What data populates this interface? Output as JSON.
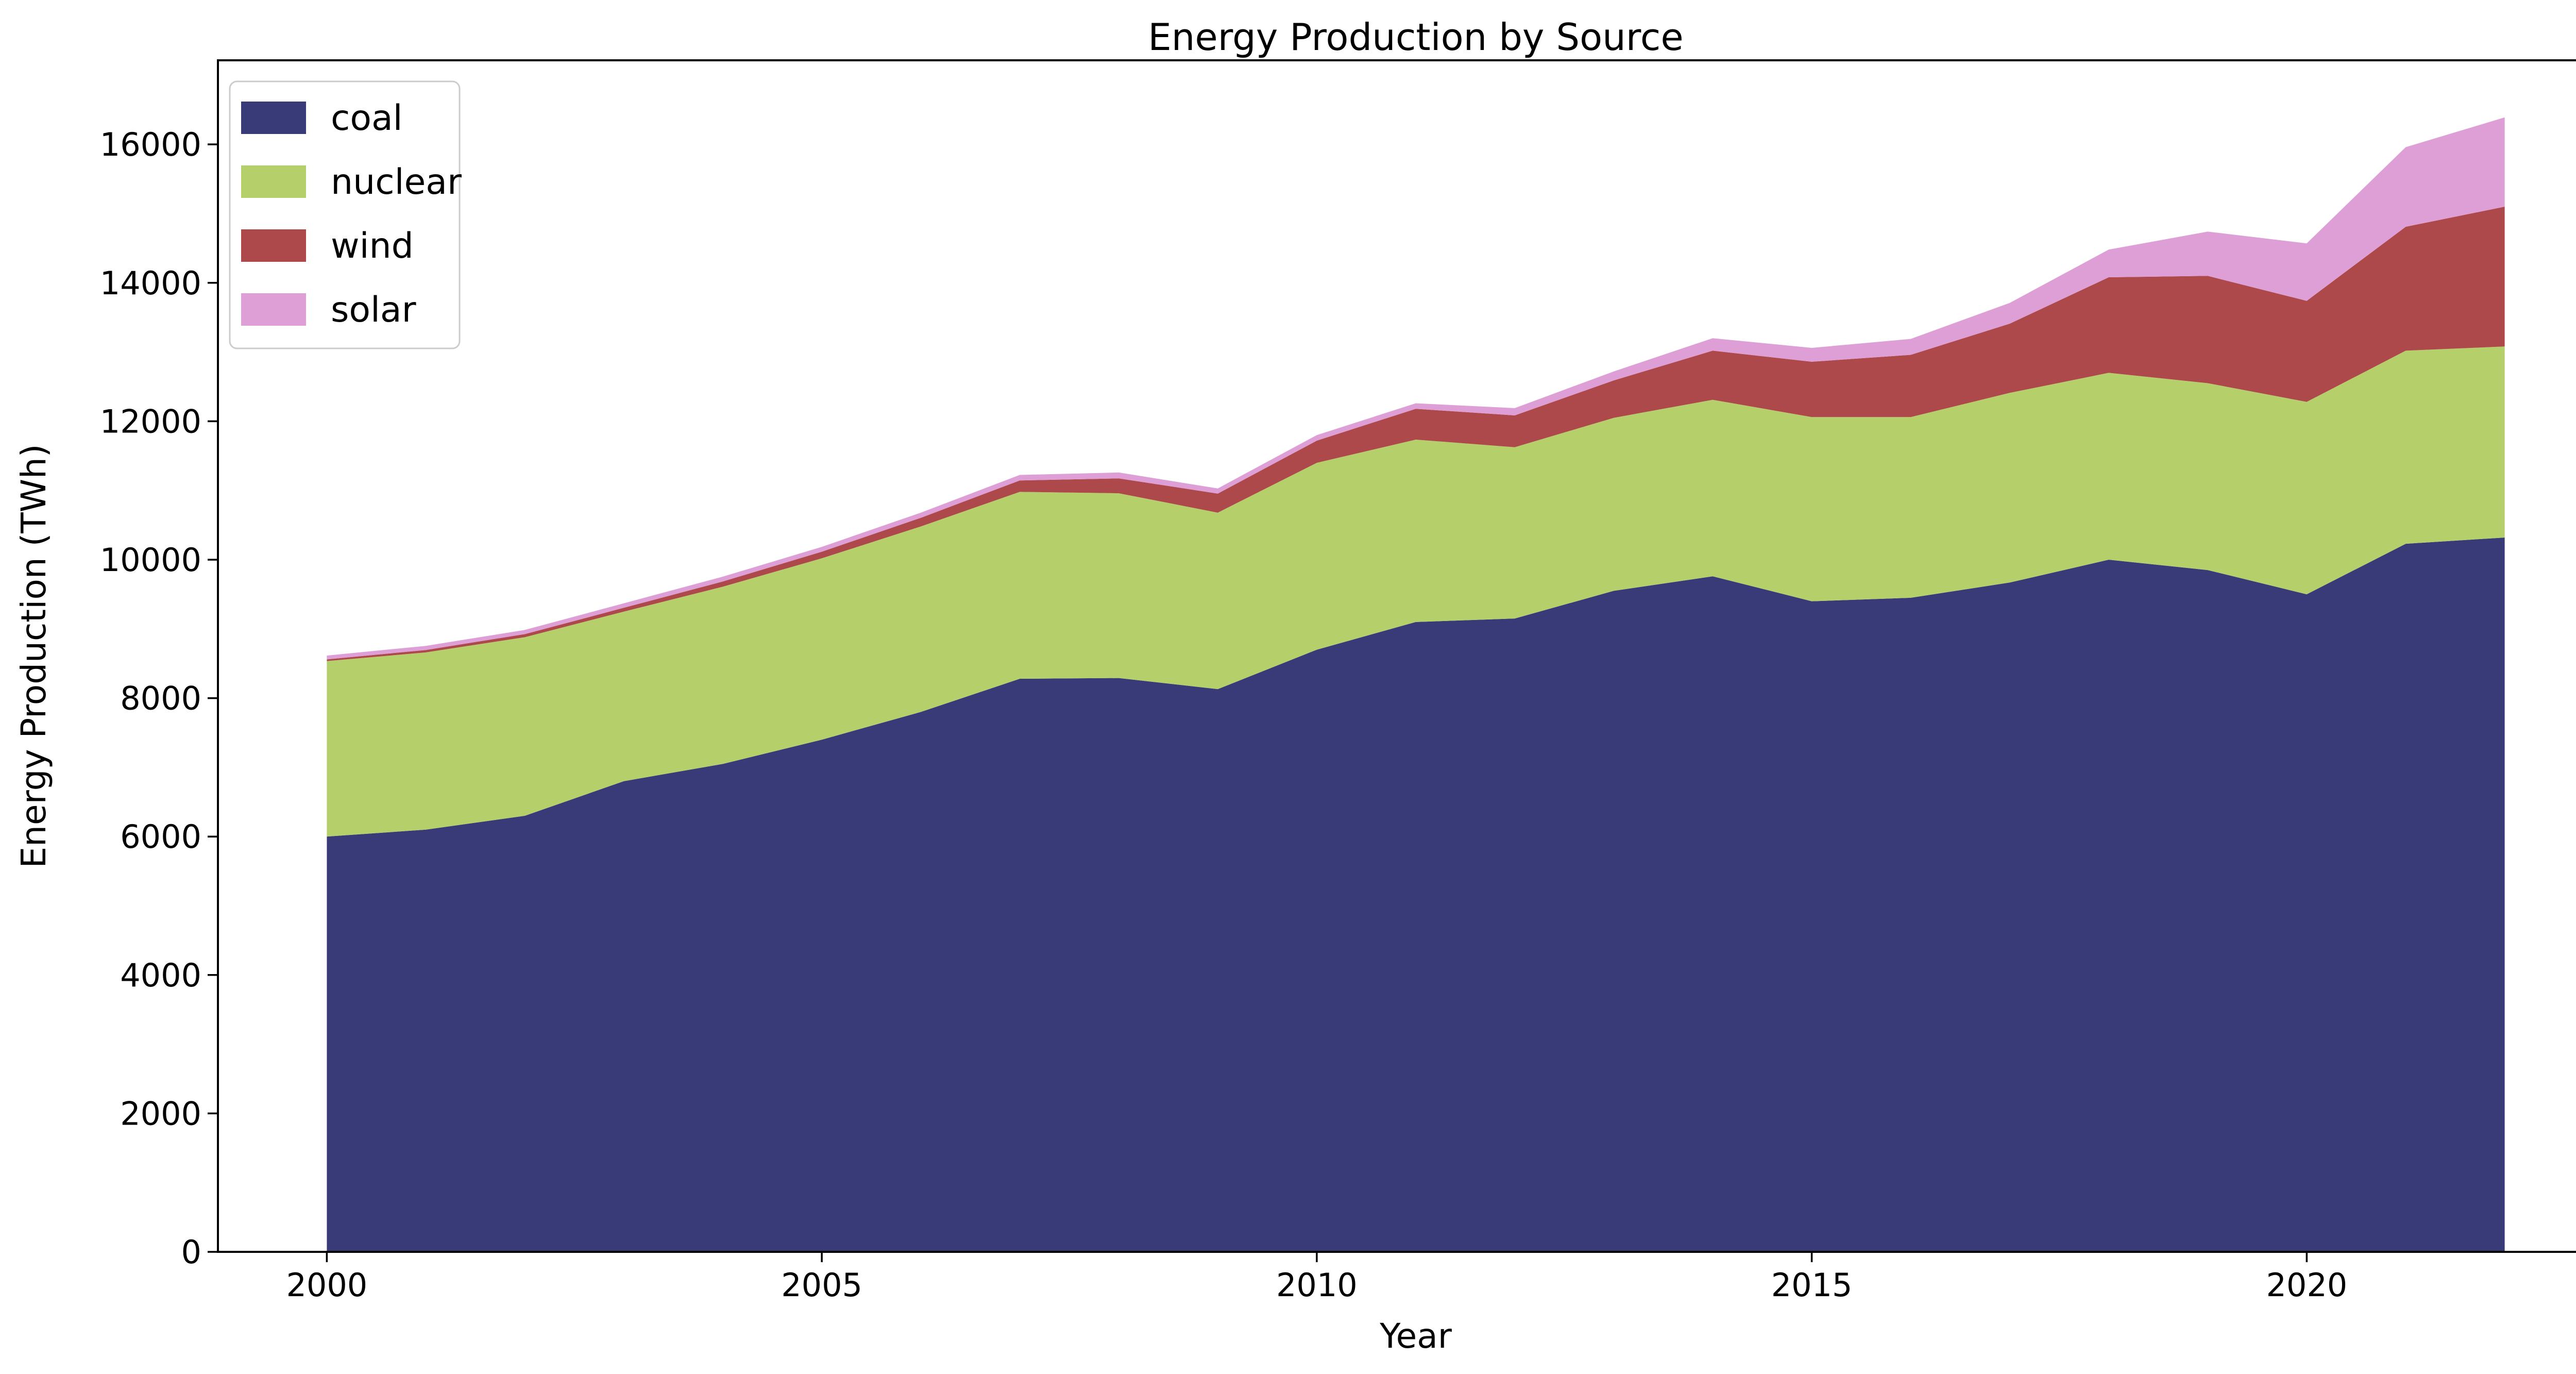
{
  "title": "Energy Production by Source",
  "axes": {
    "x_label": "Year",
    "y_label": "Energy Production (TWh)",
    "x_tick_labels": [
      "2000",
      "2005",
      "2010",
      "2015",
      "2020"
    ],
    "y_tick_labels": [
      "0",
      "2000",
      "4000",
      "6000",
      "8000",
      "10000",
      "12000",
      "14000",
      "16000"
    ]
  },
  "legend": {
    "entries": [
      {
        "label": "coal",
        "color": "#393b79"
      },
      {
        "label": "nuclear",
        "color": "#b5cf6b"
      },
      {
        "label": "wind",
        "color": "#ad494a"
      },
      {
        "label": "solar",
        "color": "#de9ed6"
      }
    ],
    "border_color": "#cccccc",
    "background_color": "#ffffff"
  },
  "chart_data": {
    "type": "area",
    "stacked": true,
    "title": "Energy Production by Source",
    "xlabel": "Year",
    "ylabel": "Energy Production (TWh)",
    "x": [
      2000,
      2001,
      2002,
      2003,
      2004,
      2005,
      2006,
      2007,
      2008,
      2009,
      2010,
      2011,
      2012,
      2013,
      2014,
      2015,
      2016,
      2017,
      2018,
      2019,
      2020,
      2021,
      2022
    ],
    "series": [
      {
        "name": "coal",
        "color": "#393b79",
        "values": [
          6000,
          6100,
          6300,
          6800,
          7050,
          7400,
          7800,
          8280,
          8290,
          8130,
          8700,
          9100,
          9150,
          9550,
          9760,
          9400,
          9450,
          9670,
          10000,
          9850,
          9500,
          10230,
          10320
        ]
      },
      {
        "name": "nuclear",
        "color": "#b5cf6b",
        "values": [
          2535,
          2560,
          2580,
          2450,
          2560,
          2620,
          2680,
          2700,
          2670,
          2550,
          2700,
          2635,
          2475,
          2500,
          2550,
          2660,
          2610,
          2740,
          2700,
          2700,
          2780,
          2790,
          2760
        ]
      },
      {
        "name": "wind",
        "color": "#ad494a",
        "values": [
          25,
          35,
          45,
          55,
          75,
          95,
          125,
          165,
          215,
          275,
          320,
          445,
          460,
          540,
          710,
          800,
          900,
          1000,
          1380,
          1550,
          1460,
          1790,
          2020
        ]
      },
      {
        "name": "solar",
        "color": "#de9ed6",
        "values": [
          55,
          60,
          60,
          65,
          70,
          70,
          75,
          80,
          85,
          75,
          80,
          80,
          105,
          130,
          180,
          200,
          230,
          300,
          400,
          640,
          830,
          1150,
          1290
        ]
      }
    ],
    "x_ticks": [
      2000,
      2005,
      2010,
      2015,
      2020
    ],
    "y_ticks": [
      0,
      2000,
      4000,
      6000,
      8000,
      10000,
      12000,
      14000,
      16000
    ],
    "xlim": [
      1998.9,
      2023.1
    ],
    "ylim": [
      0,
      17215
    ],
    "grid": false,
    "legend_position": "upper left"
  }
}
